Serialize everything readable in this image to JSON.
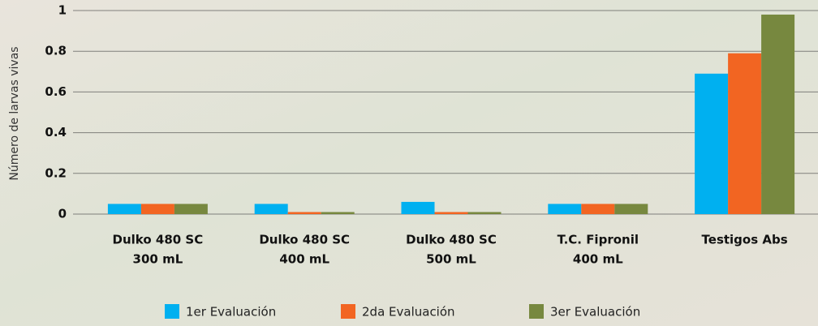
{
  "chart_data": {
    "type": "bar",
    "y_label": "Número de larvas vivas",
    "categories": [
      [
        "Dulko 480 SC",
        "300 mL"
      ],
      [
        "Dulko 480 SC",
        "400 mL"
      ],
      [
        "Dulko 480 SC",
        "500 mL"
      ],
      [
        "T.C. Fipronil",
        "400 mL"
      ],
      [
        "Testigos Abs"
      ]
    ],
    "series": [
      {
        "name": "1er Evaluación",
        "color": "#00b0f0",
        "values": [
          0.05,
          0.05,
          0.06,
          0.05,
          0.69
        ]
      },
      {
        "name": "2da Evaluación",
        "color": "#f26522",
        "values": [
          0.05,
          0.01,
          0.01,
          0.05,
          0.79
        ]
      },
      {
        "name": "3er Evaluación",
        "color": "#77883f",
        "values": [
          0.05,
          0.01,
          0.01,
          0.05,
          0.98
        ]
      }
    ],
    "ylim": [
      0,
      1
    ],
    "yticks": [
      0,
      0.2,
      0.4,
      0.6,
      0.8,
      1
    ],
    "grid": true,
    "legend": "bottom"
  }
}
